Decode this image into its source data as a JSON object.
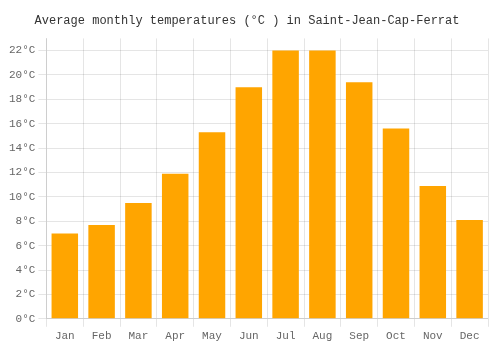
{
  "chart_data": {
    "type": "bar",
    "title": "Average monthly temperatures (°C ) in Saint-Jean-Cap-Ferrat",
    "categories": [
      "Jan",
      "Feb",
      "Mar",
      "Apr",
      "May",
      "Jun",
      "Jul",
      "Aug",
      "Sep",
      "Oct",
      "Nov",
      "Dec"
    ],
    "values": [
      7.0,
      7.7,
      9.5,
      11.9,
      15.3,
      19.0,
      22.0,
      22.0,
      19.4,
      15.6,
      10.9,
      8.1
    ],
    "color": "#FFA500",
    "ylim": [
      0,
      23
    ],
    "yticks": [
      {
        "value": 0,
        "label": "0°C"
      },
      {
        "value": 2,
        "label": "2°C"
      },
      {
        "value": 4,
        "label": "4°C"
      },
      {
        "value": 6,
        "label": "6°C"
      },
      {
        "value": 8,
        "label": "8°C"
      },
      {
        "value": 10,
        "label": "10°C"
      },
      {
        "value": 12,
        "label": "12°C"
      },
      {
        "value": 14,
        "label": "14°C"
      },
      {
        "value": 16,
        "label": "16°C"
      },
      {
        "value": 18,
        "label": "18°C"
      },
      {
        "value": 20,
        "label": "20°C"
      },
      {
        "value": 22,
        "label": "22°C"
      }
    ],
    "grid": true
  }
}
